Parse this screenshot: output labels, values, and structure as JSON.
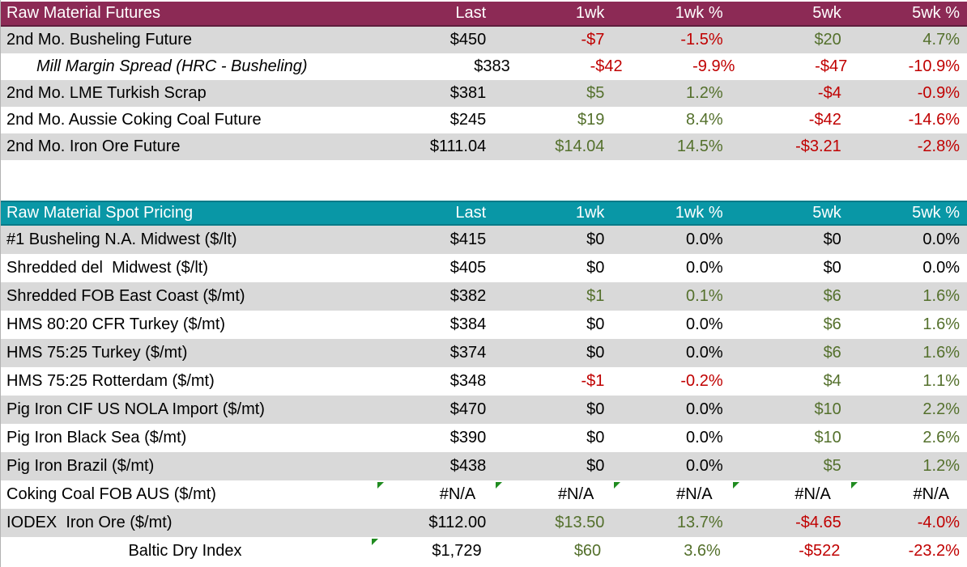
{
  "colors": {
    "futures_header_bg": "#8C2A55",
    "futures_header_border": "#5E1D3C",
    "spot_header_bg": "#0997A6",
    "spot_header_border": "#067A88",
    "header_text": "#FFFFFF",
    "row_alt_bg": "#D9D9D9",
    "row_bg": "#FFFFFF",
    "positive_text": "#54702C",
    "negative_text": "#C00000",
    "neutral_text": "#000000",
    "error_flag_green": "#1F8B1F"
  },
  "tables": [
    {
      "title": "Raw Material Futures",
      "columns": [
        "Last",
        "1wk",
        "1wk %",
        "5wk",
        "5wk %"
      ],
      "rows": [
        {
          "label": "2nd Mo. Busheling Future",
          "variant": "",
          "cells": [
            [
              "$450",
              "flat"
            ],
            [
              "-$7",
              "neg"
            ],
            [
              "-1.5%",
              "neg"
            ],
            [
              "$20",
              "pos"
            ],
            [
              "4.7%",
              "pos"
            ]
          ]
        },
        {
          "label": "Mill Margin Spread (HRC - Busheling)",
          "variant": "spread",
          "cells": [
            [
              "$383",
              "flat"
            ],
            [
              "-$42",
              "neg"
            ],
            [
              "-9.9%",
              "neg"
            ],
            [
              "-$47",
              "neg"
            ],
            [
              "-10.9%",
              "neg"
            ]
          ]
        },
        {
          "label": "2nd Mo. LME Turkish Scrap",
          "variant": "",
          "cells": [
            [
              "$381",
              "flat"
            ],
            [
              "$5",
              "pos"
            ],
            [
              "1.2%",
              "pos"
            ],
            [
              "-$4",
              "neg"
            ],
            [
              "-0.9%",
              "neg"
            ]
          ]
        },
        {
          "label": "2nd Mo. Aussie Coking Coal Future",
          "variant": "",
          "cells": [
            [
              "$245",
              "flat"
            ],
            [
              "$19",
              "pos"
            ],
            [
              "8.4%",
              "pos"
            ],
            [
              "-$42",
              "neg"
            ],
            [
              "-14.6%",
              "neg"
            ]
          ]
        },
        {
          "label": "2nd Mo. Iron Ore Future",
          "variant": "",
          "cells": [
            [
              "$111.04",
              "flat"
            ],
            [
              "$14.04",
              "pos"
            ],
            [
              "14.5%",
              "pos"
            ],
            [
              "-$3.21",
              "neg"
            ],
            [
              "-2.8%",
              "neg"
            ]
          ]
        }
      ]
    },
    {
      "title": "Raw Material Spot Pricing",
      "columns": [
        "Last",
        "1wk",
        "1wk %",
        "5wk",
        "5wk %"
      ],
      "rows": [
        {
          "label": "#1 Busheling N.A. Midwest ($/lt)",
          "variant": "",
          "cells": [
            [
              "$415",
              "flat"
            ],
            [
              "$0",
              "flat"
            ],
            [
              "0.0%",
              "flat"
            ],
            [
              "$0",
              "flat"
            ],
            [
              "0.0%",
              "flat"
            ]
          ]
        },
        {
          "label": "Shredded del  Midwest ($/lt)",
          "variant": "",
          "cells": [
            [
              "$405",
              "flat"
            ],
            [
              "$0",
              "flat"
            ],
            [
              "0.0%",
              "flat"
            ],
            [
              "$0",
              "flat"
            ],
            [
              "0.0%",
              "flat"
            ]
          ]
        },
        {
          "label": "Shredded FOB East Coast ($/mt)",
          "variant": "",
          "cells": [
            [
              "$382",
              "flat"
            ],
            [
              "$1",
              "pos"
            ],
            [
              "0.1%",
              "pos"
            ],
            [
              "$6",
              "pos"
            ],
            [
              "1.6%",
              "pos"
            ]
          ]
        },
        {
          "label": "HMS 80:20 CFR Turkey ($/mt)",
          "variant": "",
          "cells": [
            [
              "$384",
              "flat"
            ],
            [
              "$0",
              "flat"
            ],
            [
              "0.0%",
              "flat"
            ],
            [
              "$6",
              "pos"
            ],
            [
              "1.6%",
              "pos"
            ]
          ]
        },
        {
          "label": "HMS 75:25 Turkey ($/mt)",
          "variant": "",
          "cells": [
            [
              "$374",
              "flat"
            ],
            [
              "$0",
              "flat"
            ],
            [
              "0.0%",
              "flat"
            ],
            [
              "$6",
              "pos"
            ],
            [
              "1.6%",
              "pos"
            ]
          ]
        },
        {
          "label": "HMS 75:25 Rotterdam ($/mt)",
          "variant": "",
          "cells": [
            [
              "$348",
              "flat"
            ],
            [
              "-$1",
              "neg"
            ],
            [
              "-0.2%",
              "neg"
            ],
            [
              "$4",
              "pos"
            ],
            [
              "1.1%",
              "pos"
            ]
          ]
        },
        {
          "label": "Pig Iron CIF US NOLA Import ($/mt)",
          "variant": "",
          "cells": [
            [
              "$470",
              "flat"
            ],
            [
              "$0",
              "flat"
            ],
            [
              "0.0%",
              "flat"
            ],
            [
              "$10",
              "pos"
            ],
            [
              "2.2%",
              "pos"
            ]
          ]
        },
        {
          "label": "Pig Iron Black Sea ($/mt)",
          "variant": "",
          "cells": [
            [
              "$390",
              "flat"
            ],
            [
              "$0",
              "flat"
            ],
            [
              "0.0%",
              "flat"
            ],
            [
              "$10",
              "pos"
            ],
            [
              "2.6%",
              "pos"
            ]
          ]
        },
        {
          "label": "Pig Iron Brazil ($/mt)",
          "variant": "",
          "cells": [
            [
              "$438",
              "flat"
            ],
            [
              "$0",
              "flat"
            ],
            [
              "0.0%",
              "flat"
            ],
            [
              "$5",
              "pos"
            ],
            [
              "1.2%",
              "pos"
            ]
          ]
        },
        {
          "label": "Coking Coal FOB AUS ($/mt)",
          "variant": "na",
          "cells": [
            [
              "#N/A",
              "flat",
              1
            ],
            [
              "#N/A",
              "flat",
              1
            ],
            [
              "#N/A",
              "flat",
              1
            ],
            [
              "#N/A",
              "flat",
              1
            ],
            [
              "#N/A",
              "flat",
              1
            ]
          ]
        },
        {
          "label": "IODEX  Iron Ore ($/mt)",
          "variant": "",
          "cells": [
            [
              "$112.00",
              "flat"
            ],
            [
              "$13.50",
              "pos"
            ],
            [
              "13.7%",
              "pos"
            ],
            [
              "-$4.65",
              "neg"
            ],
            [
              "-4.0%",
              "neg"
            ]
          ]
        },
        {
          "label": "Baltic Dry Index",
          "variant": "centered",
          "cells": [
            [
              "$1,729",
              "flat",
              1
            ],
            [
              "$60",
              "pos"
            ],
            [
              "3.6%",
              "pos"
            ],
            [
              "-$522",
              "neg"
            ],
            [
              "-23.2%",
              "neg"
            ]
          ]
        }
      ]
    }
  ]
}
